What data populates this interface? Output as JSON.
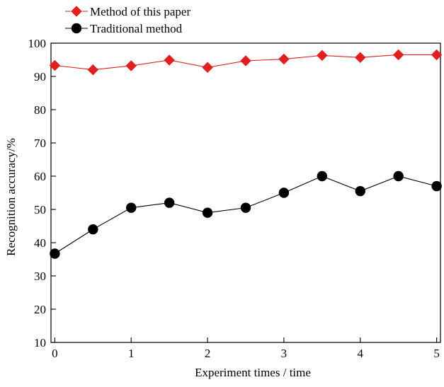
{
  "chart_data": {
    "type": "line",
    "xlabel": "Experiment times / time",
    "ylabel": "Recognition accuracy/%",
    "xlim": [
      -0.05,
      5.05
    ],
    "ylim": [
      10,
      100
    ],
    "x_ticks": [
      0,
      1,
      2,
      3,
      4,
      5
    ],
    "y_ticks": [
      10,
      20,
      30,
      40,
      50,
      60,
      70,
      80,
      90,
      100
    ],
    "grid": false,
    "legend_position": "top-left, above plot",
    "x": [
      0,
      0.5,
      1,
      1.5,
      2,
      2.5,
      3,
      3.5,
      4,
      4.5,
      5
    ],
    "series": [
      {
        "name": "Method of this paper",
        "color": "#e02020",
        "marker": "diamond",
        "values": [
          93.3,
          92.0,
          93.2,
          94.9,
          92.7,
          94.7,
          95.2,
          96.3,
          95.7,
          96.5,
          96.5
        ]
      },
      {
        "name": "Traditional method",
        "color": "#000000",
        "marker": "circle",
        "values": [
          36.7,
          44.0,
          50.5,
          52.0,
          49.0,
          50.5,
          55.0,
          60.0,
          55.5,
          60.0,
          57.0
        ]
      }
    ]
  }
}
